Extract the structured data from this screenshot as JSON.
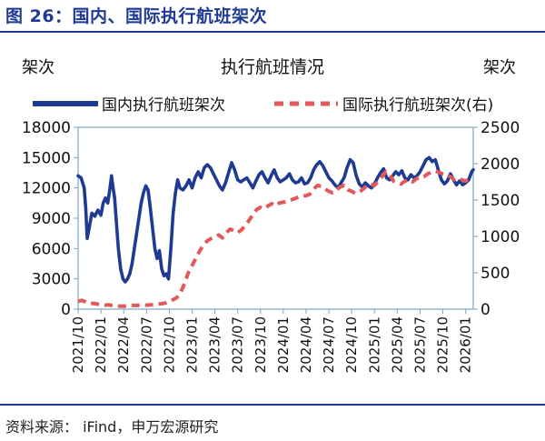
{
  "figure_title": "图 26：国内、国际执行航班架次",
  "source": "资料来源：  iFind，申万宏源研究",
  "colors": {
    "domestic": "#1f3a93",
    "international": "#e05a5a",
    "axis": "#7aa6c8",
    "title": "#1f3a93"
  },
  "chart_data": {
    "type": "line",
    "title": "执行航班情况",
    "ylabel_left": "架次",
    "ylabel_right": "架次",
    "ylim_left": [
      0,
      18000
    ],
    "yticks_left": [
      0,
      3000,
      6000,
      9000,
      12000,
      15000,
      18000
    ],
    "yticks_left_labels": [
      "0",
      "3000",
      "6000",
      "9000",
      "12000",
      "15000",
      "18000"
    ],
    "ylim_right": [
      0,
      2500
    ],
    "yticks_right": [
      0,
      500,
      1000,
      1500,
      2000,
      2500
    ],
    "yticks_right_labels": [
      "0",
      "500",
      "1000",
      "1500",
      "2000",
      "2500"
    ],
    "x_range": [
      0,
      52
    ],
    "x_ticks": [
      0,
      3,
      6,
      9,
      12,
      15,
      18,
      21,
      24,
      27,
      30,
      33,
      36,
      39,
      42,
      45,
      48,
      51
    ],
    "x_tick_labels": [
      "2021/10",
      "2022/01",
      "2022/04",
      "2022/07",
      "2022/10",
      "2023/01",
      "2023/04",
      "2023/07",
      "2023/10",
      "2024/01",
      "2024/04",
      "2024/07",
      "2024/10",
      "2025/01",
      "2025/04",
      "2025/07",
      "2025/10",
      "2026/01"
    ],
    "series": [
      {
        "name": "国内执行航班架次",
        "axis": "left",
        "style": "solid",
        "points": [
          [
            0,
            13200
          ],
          [
            0.4,
            13000
          ],
          [
            0.8,
            12000
          ],
          [
            1.0,
            10000
          ],
          [
            1.2,
            7000
          ],
          [
            1.5,
            8200
          ],
          [
            1.8,
            9500
          ],
          [
            2.2,
            9200
          ],
          [
            2.6,
            9800
          ],
          [
            3.0,
            9300
          ],
          [
            3.3,
            10500
          ],
          [
            3.6,
            11000
          ],
          [
            3.9,
            10500
          ],
          [
            4.2,
            12000
          ],
          [
            4.4,
            13200
          ],
          [
            4.6,
            12000
          ],
          [
            4.8,
            11000
          ],
          [
            5.0,
            9000
          ],
          [
            5.3,
            6000
          ],
          [
            5.6,
            4000
          ],
          [
            5.9,
            3000
          ],
          [
            6.2,
            2700
          ],
          [
            6.5,
            3000
          ],
          [
            6.8,
            3500
          ],
          [
            7.1,
            4500
          ],
          [
            7.4,
            6000
          ],
          [
            7.7,
            7500
          ],
          [
            8.0,
            9000
          ],
          [
            8.3,
            10500
          ],
          [
            8.6,
            11500
          ],
          [
            8.9,
            12200
          ],
          [
            9.2,
            11800
          ],
          [
            9.5,
            10000
          ],
          [
            9.8,
            8000
          ],
          [
            10.1,
            6000
          ],
          [
            10.4,
            5000
          ],
          [
            10.7,
            5800
          ],
          [
            11.0,
            4000
          ],
          [
            11.3,
            3300
          ],
          [
            11.6,
            3500
          ],
          [
            11.9,
            3000
          ],
          [
            12.2,
            6000
          ],
          [
            12.5,
            9500
          ],
          [
            12.8,
            11500
          ],
          [
            13.1,
            12800
          ],
          [
            13.4,
            12000
          ],
          [
            13.8,
            11800
          ],
          [
            14.2,
            12200
          ],
          [
            14.6,
            12800
          ],
          [
            15.0,
            12000
          ],
          [
            15.4,
            13000
          ],
          [
            15.8,
            13600
          ],
          [
            16.2,
            13000
          ],
          [
            16.6,
            14000
          ],
          [
            17.0,
            14300
          ],
          [
            17.4,
            14000
          ],
          [
            17.8,
            13400
          ],
          [
            18.2,
            12800
          ],
          [
            18.6,
            12200
          ],
          [
            19.0,
            11800
          ],
          [
            19.4,
            12500
          ],
          [
            19.8,
            13500
          ],
          [
            20.2,
            14500
          ],
          [
            20.6,
            13800
          ],
          [
            21.0,
            12800
          ],
          [
            21.4,
            12600
          ],
          [
            21.8,
            12800
          ],
          [
            22.2,
            13000
          ],
          [
            22.6,
            12500
          ],
          [
            23.0,
            12000
          ],
          [
            23.4,
            12700
          ],
          [
            23.8,
            13300
          ],
          [
            24.2,
            13600
          ],
          [
            24.6,
            13000
          ],
          [
            25.0,
            12500
          ],
          [
            25.4,
            13200
          ],
          [
            25.8,
            13800
          ],
          [
            26.2,
            13000
          ],
          [
            26.6,
            12600
          ],
          [
            27.0,
            12800
          ],
          [
            27.4,
            13000
          ],
          [
            27.8,
            13400
          ],
          [
            28.2,
            12800
          ],
          [
            28.6,
            12500
          ],
          [
            29.0,
            12600
          ],
          [
            29.4,
            13000
          ],
          [
            29.8,
            12400
          ],
          [
            30.2,
            12500
          ],
          [
            30.6,
            13000
          ],
          [
            31.0,
            13800
          ],
          [
            31.4,
            14300
          ],
          [
            31.8,
            14600
          ],
          [
            32.2,
            14200
          ],
          [
            32.6,
            13600
          ],
          [
            33.0,
            13000
          ],
          [
            33.4,
            12700
          ],
          [
            33.8,
            12300
          ],
          [
            34.2,
            12000
          ],
          [
            34.6,
            12500
          ],
          [
            35.0,
            13000
          ],
          [
            35.4,
            14000
          ],
          [
            35.8,
            14800
          ],
          [
            36.2,
            14500
          ],
          [
            36.6,
            13200
          ],
          [
            37.0,
            12400
          ],
          [
            37.4,
            12100
          ],
          [
            37.8,
            12500
          ],
          [
            38.2,
            12200
          ],
          [
            38.6,
            12000
          ],
          [
            39.0,
            12400
          ],
          [
            39.4,
            13000
          ],
          [
            39.8,
            13500
          ],
          [
            40.2,
            13900
          ],
          [
            40.6,
            13000
          ],
          [
            41.0,
            12800
          ],
          [
            41.4,
            13200
          ],
          [
            41.8,
            13600
          ],
          [
            42.2,
            13300
          ],
          [
            42.6,
            13700
          ],
          [
            43.0,
            13000
          ],
          [
            43.4,
            12800
          ],
          [
            43.8,
            13300
          ],
          [
            44.2,
            13000
          ],
          [
            44.6,
            13200
          ],
          [
            45.0,
            13600
          ],
          [
            45.4,
            14200
          ],
          [
            45.8,
            14800
          ],
          [
            46.2,
            15000
          ],
          [
            46.6,
            14600
          ],
          [
            47.0,
            14800
          ],
          [
            47.4,
            13800
          ],
          [
            47.8,
            12800
          ],
          [
            48.2,
            12400
          ],
          [
            48.6,
            12700
          ],
          [
            49.0,
            13400
          ],
          [
            49.4,
            12800
          ],
          [
            49.8,
            12300
          ],
          [
            50.2,
            12700
          ],
          [
            50.6,
            12300
          ],
          [
            51.0,
            12500
          ],
          [
            51.4,
            12800
          ],
          [
            51.8,
            13600
          ],
          [
            52.0,
            13800
          ]
        ]
      },
      {
        "name": "国际执行航班架次(右)",
        "axis": "right",
        "style": "dashed",
        "points": [
          [
            0,
            110
          ],
          [
            0.5,
            120
          ],
          [
            1.0,
            100
          ],
          [
            1.5,
            75
          ],
          [
            2.0,
            80
          ],
          [
            2.5,
            70
          ],
          [
            3.0,
            60
          ],
          [
            3.5,
            55
          ],
          [
            4.0,
            60
          ],
          [
            4.5,
            50
          ],
          [
            5.0,
            45
          ],
          [
            5.5,
            40
          ],
          [
            6.0,
            40
          ],
          [
            6.5,
            45
          ],
          [
            7.0,
            55
          ],
          [
            7.5,
            50
          ],
          [
            8.0,
            55
          ],
          [
            8.5,
            60
          ],
          [
            9.0,
            55
          ],
          [
            9.5,
            60
          ],
          [
            10.0,
            60
          ],
          [
            10.5,
            70
          ],
          [
            11.0,
            75
          ],
          [
            11.5,
            85
          ],
          [
            12.0,
            100
          ],
          [
            12.5,
            130
          ],
          [
            13.0,
            160
          ],
          [
            13.5,
            230
          ],
          [
            14.0,
            350
          ],
          [
            14.5,
            500
          ],
          [
            15.0,
            600
          ],
          [
            15.5,
            700
          ],
          [
            16.0,
            800
          ],
          [
            16.5,
            880
          ],
          [
            17.0,
            940
          ],
          [
            17.5,
            970
          ],
          [
            18.0,
            990
          ],
          [
            18.5,
            1020
          ],
          [
            19.0,
            980
          ],
          [
            19.5,
            1050
          ],
          [
            20.0,
            1100
          ],
          [
            20.5,
            1080
          ],
          [
            21.0,
            1050
          ],
          [
            21.5,
            1090
          ],
          [
            22.0,
            1150
          ],
          [
            22.5,
            1220
          ],
          [
            23.0,
            1300
          ],
          [
            23.5,
            1370
          ],
          [
            24.0,
            1400
          ],
          [
            24.5,
            1380
          ],
          [
            25.0,
            1420
          ],
          [
            25.5,
            1450
          ],
          [
            26.0,
            1420
          ],
          [
            26.5,
            1460
          ],
          [
            27.0,
            1470
          ],
          [
            27.5,
            1480
          ],
          [
            28.0,
            1500
          ],
          [
            28.5,
            1520
          ],
          [
            29.0,
            1540
          ],
          [
            29.5,
            1560
          ],
          [
            30.0,
            1560
          ],
          [
            30.5,
            1580
          ],
          [
            31.0,
            1650
          ],
          [
            31.5,
            1700
          ],
          [
            32.0,
            1690
          ],
          [
            32.5,
            1650
          ],
          [
            33.0,
            1620
          ],
          [
            33.5,
            1600
          ],
          [
            34.0,
            1640
          ],
          [
            34.5,
            1680
          ],
          [
            35.0,
            1700
          ],
          [
            35.5,
            1640
          ],
          [
            36.0,
            1620
          ],
          [
            36.5,
            1590
          ],
          [
            37.0,
            1610
          ],
          [
            37.5,
            1650
          ],
          [
            38.0,
            1700
          ],
          [
            38.5,
            1720
          ],
          [
            39.0,
            1700
          ],
          [
            39.5,
            1760
          ],
          [
            40.0,
            1820
          ],
          [
            40.5,
            1890
          ],
          [
            41.0,
            1850
          ],
          [
            41.5,
            1760
          ],
          [
            42.0,
            1740
          ],
          [
            42.5,
            1720
          ],
          [
            43.0,
            1760
          ],
          [
            43.5,
            1780
          ],
          [
            44.0,
            1750
          ],
          [
            44.5,
            1790
          ],
          [
            45.0,
            1820
          ],
          [
            45.5,
            1820
          ],
          [
            46.0,
            1860
          ],
          [
            46.5,
            1880
          ],
          [
            47.0,
            1900
          ],
          [
            47.5,
            1880
          ],
          [
            48.0,
            1860
          ],
          [
            48.5,
            1850
          ],
          [
            49.0,
            1820
          ],
          [
            49.5,
            1780
          ],
          [
            50.0,
            1800
          ],
          [
            50.5,
            1780
          ],
          [
            51.0,
            1760
          ],
          [
            51.5,
            1790
          ],
          [
            52.0,
            1800
          ]
        ]
      }
    ]
  }
}
